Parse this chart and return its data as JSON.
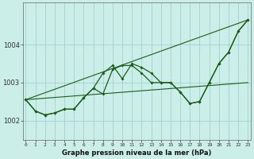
{
  "xlabel": "Graphe pression niveau de la mer (hPa)",
  "background_color": "#cceee8",
  "grid_color": "#99cccc",
  "line_color": "#1a5c1a",
  "ylim": [
    1001.5,
    1005.1
  ],
  "yticks": [
    1002,
    1003,
    1004
  ],
  "xlim": [
    -0.3,
    23.3
  ],
  "series1": [
    1002.55,
    1002.25,
    1002.15,
    1002.2,
    1002.3,
    1002.3,
    1002.6,
    1002.85,
    1003.25,
    1003.45,
    1003.1,
    1003.5,
    1003.4,
    1003.25,
    1003.0,
    1003.0,
    1002.75,
    1002.45,
    1002.5,
    1003.0,
    1003.5,
    1003.8,
    1004.35,
    1004.65
  ],
  "series2": [
    1002.55,
    1002.25,
    1002.15,
    1002.2,
    1002.3,
    1002.3,
    1002.6,
    1002.85,
    1002.7,
    1003.35,
    1003.45,
    1003.45,
    1003.25,
    1003.0,
    1003.0,
    1003.0,
    1002.75,
    1002.45,
    1002.5,
    1003.0,
    1003.5,
    1003.8,
    1004.35,
    1004.65
  ],
  "trend1_x": [
    0,
    23
  ],
  "trend1_y": [
    1002.55,
    1004.65
  ],
  "trend2_x": [
    0,
    23
  ],
  "trend2_y": [
    1002.55,
    1003.0
  ]
}
